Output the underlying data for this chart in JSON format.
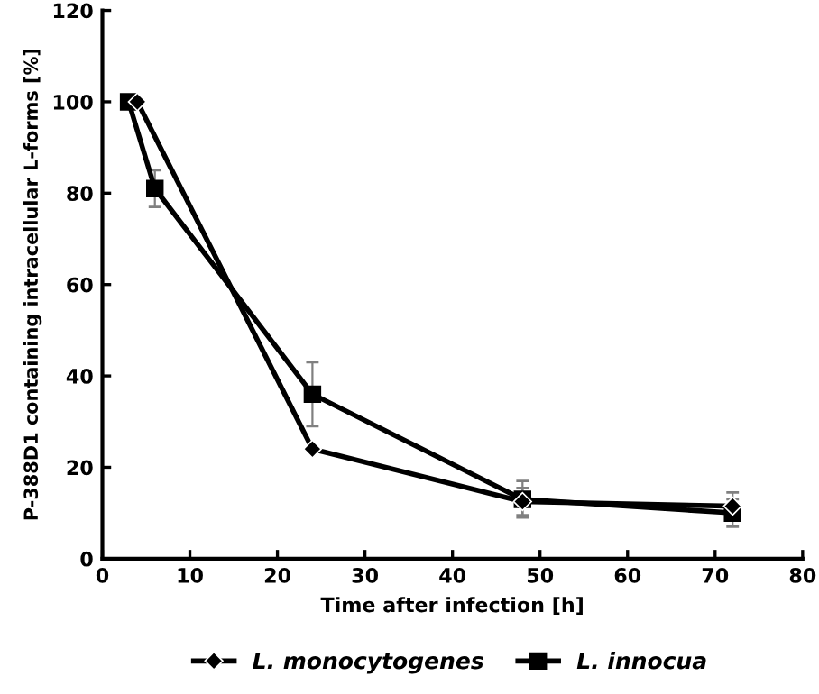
{
  "chart_data": {
    "type": "line",
    "xlabel": "Time after infection [h]",
    "ylabel": "P-388D1 containing intracellular L-forms [%]",
    "xlim": [
      0,
      80
    ],
    "xticks": [
      0,
      10,
      20,
      30,
      40,
      50,
      60,
      70,
      80
    ],
    "ylim": [
      0,
      120
    ],
    "yticks": [
      0,
      20,
      40,
      60,
      80,
      100,
      120
    ],
    "grid": false,
    "legend": "bottom",
    "series": [
      {
        "name": "L. monocytogenes",
        "color": "#000000",
        "marker": "diamond",
        "x": [
          4,
          24,
          48,
          72
        ],
        "values": [
          100,
          24,
          12.5,
          11.5
        ],
        "errors": [
          null,
          null,
          3,
          3
        ]
      },
      {
        "name": "L. innocua",
        "color": "#000000",
        "marker": "square",
        "x": [
          3,
          6,
          24,
          48,
          72
        ],
        "values": [
          100,
          81,
          36,
          13,
          10
        ],
        "errors": [
          null,
          4,
          7,
          4,
          3
        ]
      }
    ]
  }
}
